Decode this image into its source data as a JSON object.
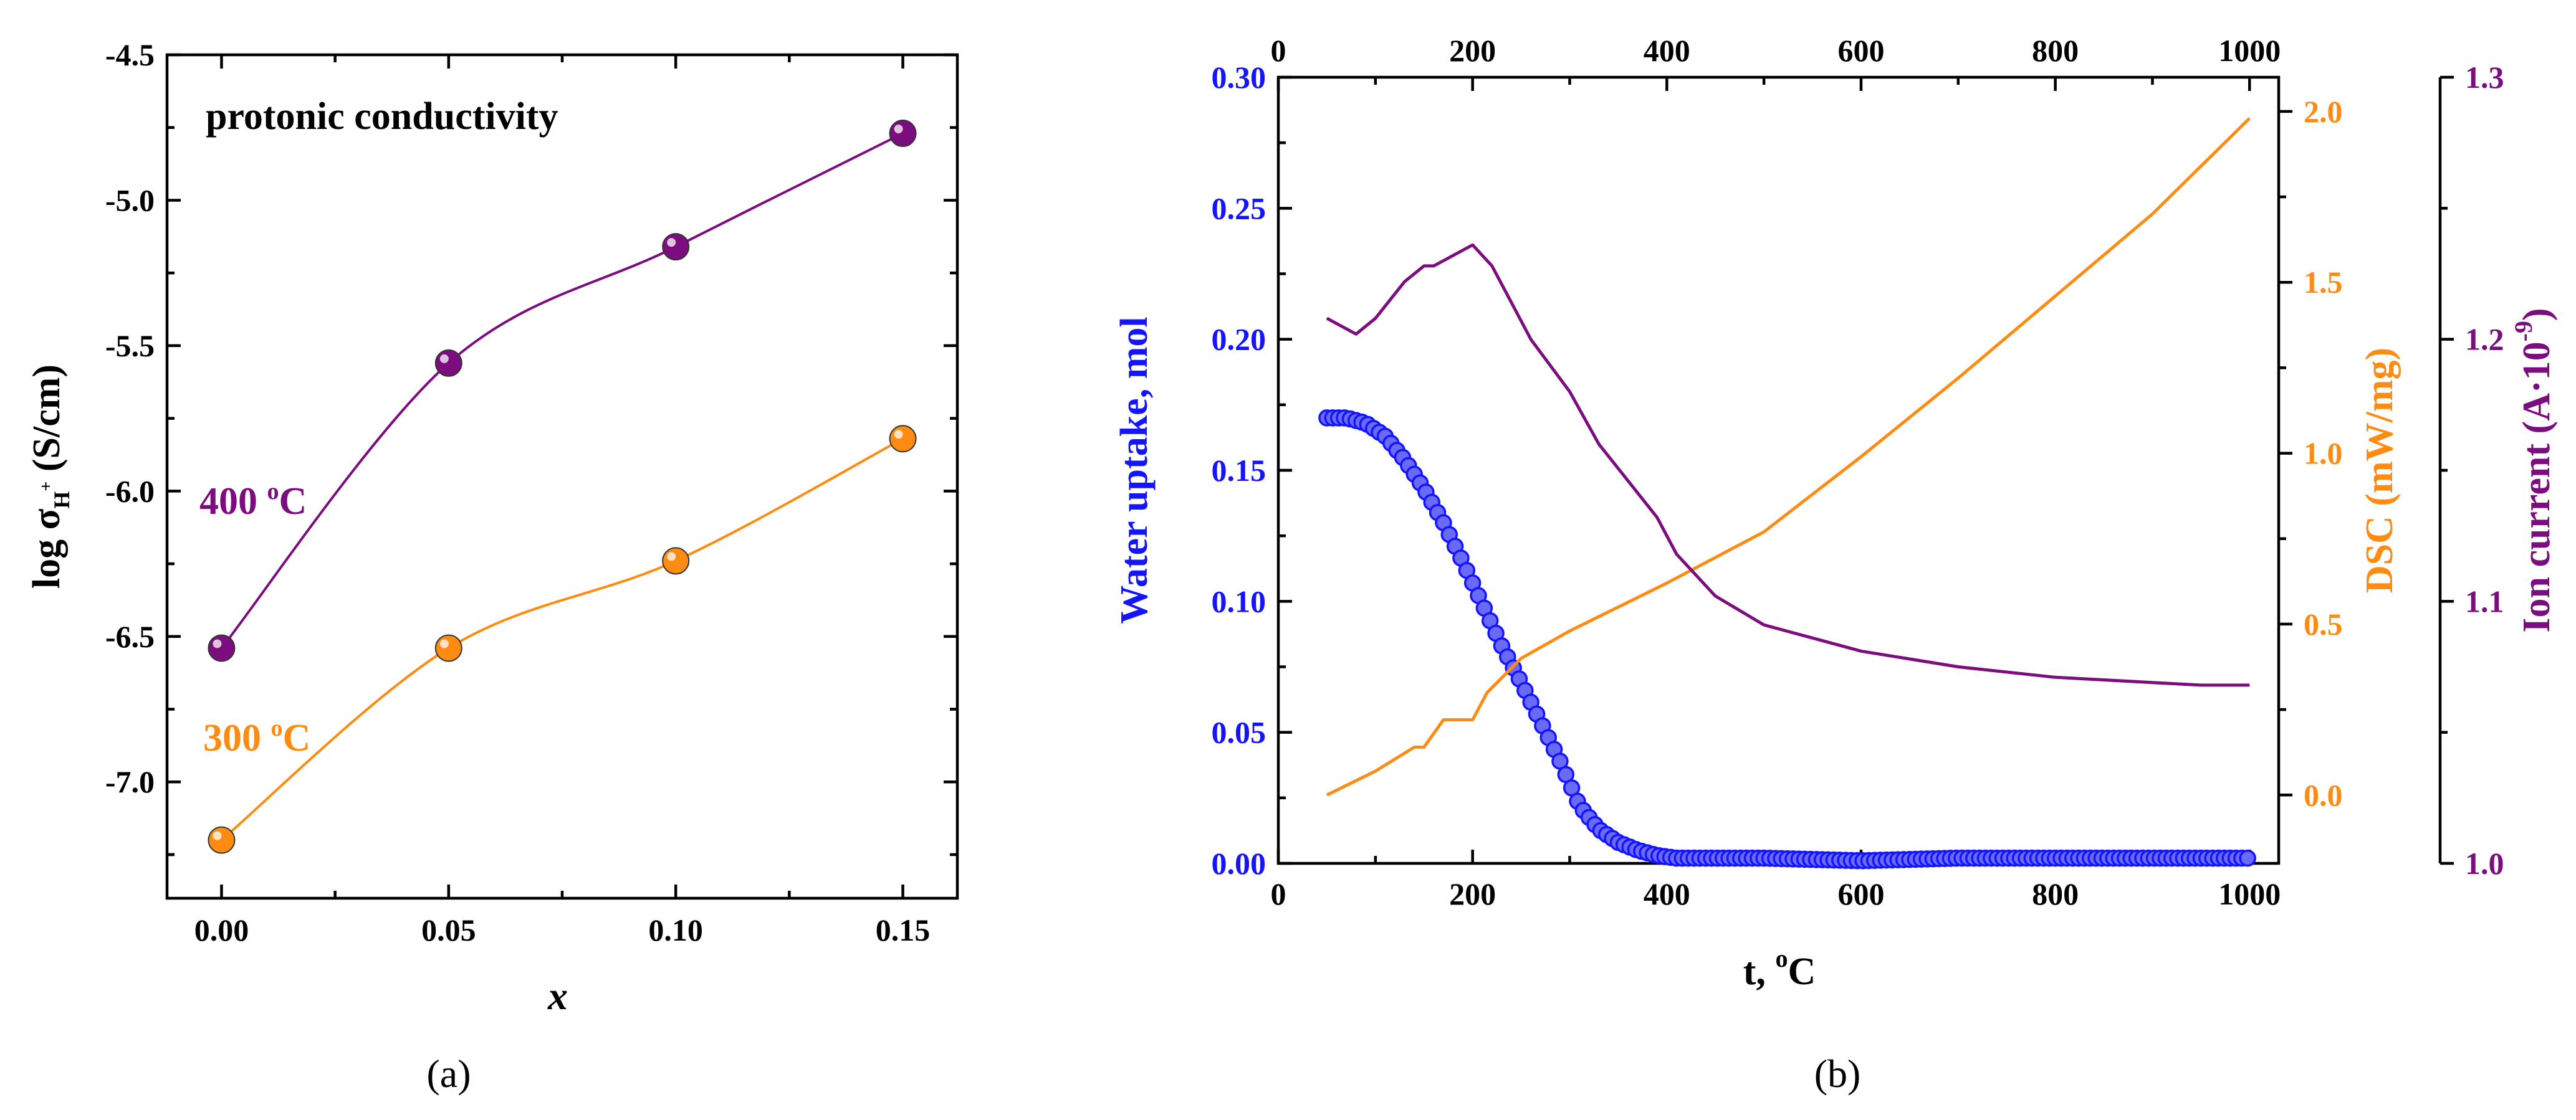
{
  "colors": {
    "purple": "#7B0D7E",
    "orange": "#FF8C12",
    "blue": "#1414FF",
    "black": "#000000"
  },
  "chart_data": [
    {
      "type": "line",
      "panel_label": "(a)",
      "title": "protonic conductivity",
      "xlabel": "x",
      "ylabel": {
        "main": "log σ",
        "sub": "H",
        "sup": "+",
        "unit": " (S/cm)"
      },
      "xlim": [
        -0.012,
        0.162
      ],
      "ylim": [
        -7.4,
        -4.5
      ],
      "xticks": [
        "0.00",
        "0.05",
        "0.10",
        "0.15"
      ],
      "yticks": [
        "-4.5",
        "-5.0",
        "-5.5",
        "-6.0",
        "-6.5",
        "-7.0"
      ],
      "series": [
        {
          "name": "400 °C",
          "color": "#7B0D7E",
          "x": [
            0,
            0.05,
            0.1,
            0.15
          ],
          "y": [
            -6.54,
            -5.56,
            -5.16,
            -4.77
          ]
        },
        {
          "name": "300 °C",
          "color": "#FF8C12",
          "x": [
            0,
            0.05,
            0.1,
            0.15
          ],
          "y": [
            -7.2,
            -6.54,
            -6.24,
            -5.82
          ]
        }
      ],
      "annotations": [
        {
          "base": "400 ",
          "sup": "o",
          "tail": "C",
          "color": "#7B0D7E"
        },
        {
          "base": "300 ",
          "sup": "o",
          "tail": "C",
          "color": "#FF8C12"
        }
      ]
    },
    {
      "type": "line",
      "panel_label": "(b)",
      "xlabel": {
        "base": "t, ",
        "sup": "o",
        "tail": "C"
      },
      "xlim": [
        0,
        1030
      ],
      "xticks": [
        "0",
        "200",
        "400",
        "600",
        "800",
        "1000"
      ],
      "top_xticks": [
        "0",
        "200",
        "400",
        "600",
        "800",
        "1000"
      ],
      "left_axis": {
        "label": "Water uptake, mol",
        "color": "#1414FF",
        "ylim": [
          0,
          0.3
        ],
        "ticks": [
          "0.00",
          "0.05",
          "0.10",
          "0.15",
          "0.20",
          "0.25",
          "0.30"
        ]
      },
      "right_axis_1": {
        "label": "DSC (mW/mg)",
        "color": "#FF8C12",
        "ylim": [
          -0.2,
          2.1
        ],
        "ticks": [
          "0.0",
          "0.5",
          "1.0",
          "1.5",
          "2.0"
        ]
      },
      "right_axis_2": {
        "label": {
          "base": "Ion current (A·10",
          "sup": "-9",
          "tail": ")"
        },
        "color": "#7B0D7E",
        "ylim": [
          1.0,
          1.3
        ],
        "ticks": [
          "1.0",
          "1.1",
          "1.2",
          "1.3"
        ]
      },
      "series": [
        {
          "name": "Water uptake",
          "axis": "left",
          "marker": "circle",
          "color": "#1414FF",
          "x": [
            50,
            70,
            90,
            110,
            130,
            150,
            170,
            190,
            210,
            230,
            250,
            270,
            290,
            310,
            330,
            350,
            370,
            390,
            410,
            450,
            500,
            600,
            700,
            800,
            900,
            1000
          ],
          "y": [
            0.17,
            0.17,
            0.168,
            0.163,
            0.154,
            0.143,
            0.13,
            0.115,
            0.099,
            0.083,
            0.069,
            0.054,
            0.039,
            0.022,
            0.013,
            0.008,
            0.005,
            0.003,
            0.002,
            0.002,
            0.002,
            0.001,
            0.002,
            0.002,
            0.002,
            0.002
          ]
        },
        {
          "name": "DSC",
          "axis": "right1",
          "color": "#FF8C12",
          "x": [
            50,
            100,
            140,
            150,
            170,
            180,
            200,
            215,
            250,
            300,
            350,
            400,
            500,
            600,
            700,
            800,
            900,
            1000
          ],
          "y": [
            0.0,
            0.07,
            0.14,
            0.14,
            0.22,
            0.22,
            0.22,
            0.3,
            0.4,
            0.48,
            0.55,
            0.62,
            0.77,
            0.99,
            1.22,
            1.46,
            1.7,
            1.98
          ]
        },
        {
          "name": "Ion current",
          "axis": "right2",
          "color": "#7B0D7E",
          "x": [
            50,
            60,
            80,
            100,
            130,
            150,
            160,
            180,
            200,
            220,
            240,
            260,
            280,
            300,
            330,
            360,
            390,
            410,
            450,
            500,
            600,
            700,
            800,
            900,
            950,
            1000
          ],
          "y": [
            1.208,
            1.206,
            1.202,
            1.208,
            1.222,
            1.228,
            1.228,
            1.232,
            1.236,
            1.228,
            1.214,
            1.2,
            1.19,
            1.18,
            1.16,
            1.146,
            1.132,
            1.118,
            1.102,
            1.091,
            1.081,
            1.075,
            1.071,
            1.069,
            1.068,
            1.068
          ]
        }
      ]
    }
  ]
}
